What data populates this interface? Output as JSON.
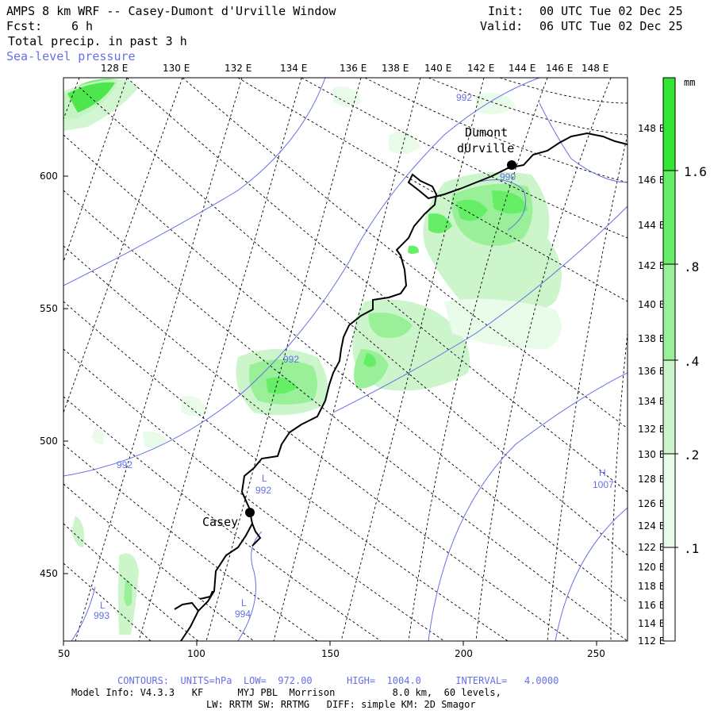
{
  "header": {
    "title": "AMPS 8 km WRF -- Casey-Dumont d'Urville Window",
    "fcst_label": "Fcst:",
    "fcst_value": "6 h",
    "field": "Total precip. in past 3 h",
    "overlay": "Sea-level pressure",
    "init_label": "Init:",
    "init_value": "00 UTC Tue 02 Dec 25",
    "valid_label": "Valid:",
    "valid_value": "06 UTC Tue 02 Dec 25"
  },
  "map": {
    "top_lon_labels": [
      "128 E",
      "130 E",
      "132 E",
      "134 E",
      "136 E",
      "138 E",
      "140 E",
      "142 E",
      "144 E",
      "146 E",
      "148 E"
    ],
    "right_lon_labels": [
      "148 E",
      "146 E",
      "144 E",
      "142 E",
      "140 E",
      "138 E",
      "136 E",
      "134 E",
      "132 E",
      "130 E",
      "128 E",
      "126 E",
      "124 E",
      "122 E",
      "120 E",
      "118 E",
      "116 E",
      "114 E",
      "112 E"
    ],
    "x_ticks": [
      "50",
      "100",
      "150",
      "200",
      "250"
    ],
    "y_ticks": [
      "600",
      "550",
      "500",
      "450"
    ],
    "stations": [
      {
        "name_line1": "Dumont",
        "name_line2": "dUrville"
      },
      {
        "name_line1": "Casey",
        "name_line2": ""
      }
    ],
    "contour_labels": [
      "992",
      "990",
      "992",
      "992",
      "992",
      "993",
      "994",
      "1007"
    ],
    "pressure_marks": [
      "L",
      "L",
      "L",
      "H"
    ]
  },
  "colorbar": {
    "unit": "mm",
    "labels": [
      "1.6",
      ".8",
      ".4",
      ".2",
      ".1"
    ],
    "colors": [
      "#33e633",
      "#66ee66",
      "#99f099",
      "#ccf5cc",
      "#e9fbe9",
      "#ffffff"
    ]
  },
  "footer": {
    "contours": "CONTOURS:  UNITS=hPa  LOW=  972.00      HIGH=  1004.0      INTERVAL=   4.0000",
    "model_info": "Model Info: V4.3.3   KF      MYJ PBL  Morrison          8.0 km,  60 levels,",
    "physics": "LW: RRTM SW: RRTMG   DIFF: simple KM: 2D Smagor"
  },
  "colors": {
    "contour": "#6670e6",
    "coast": "#000000",
    "grid": "#000000"
  }
}
